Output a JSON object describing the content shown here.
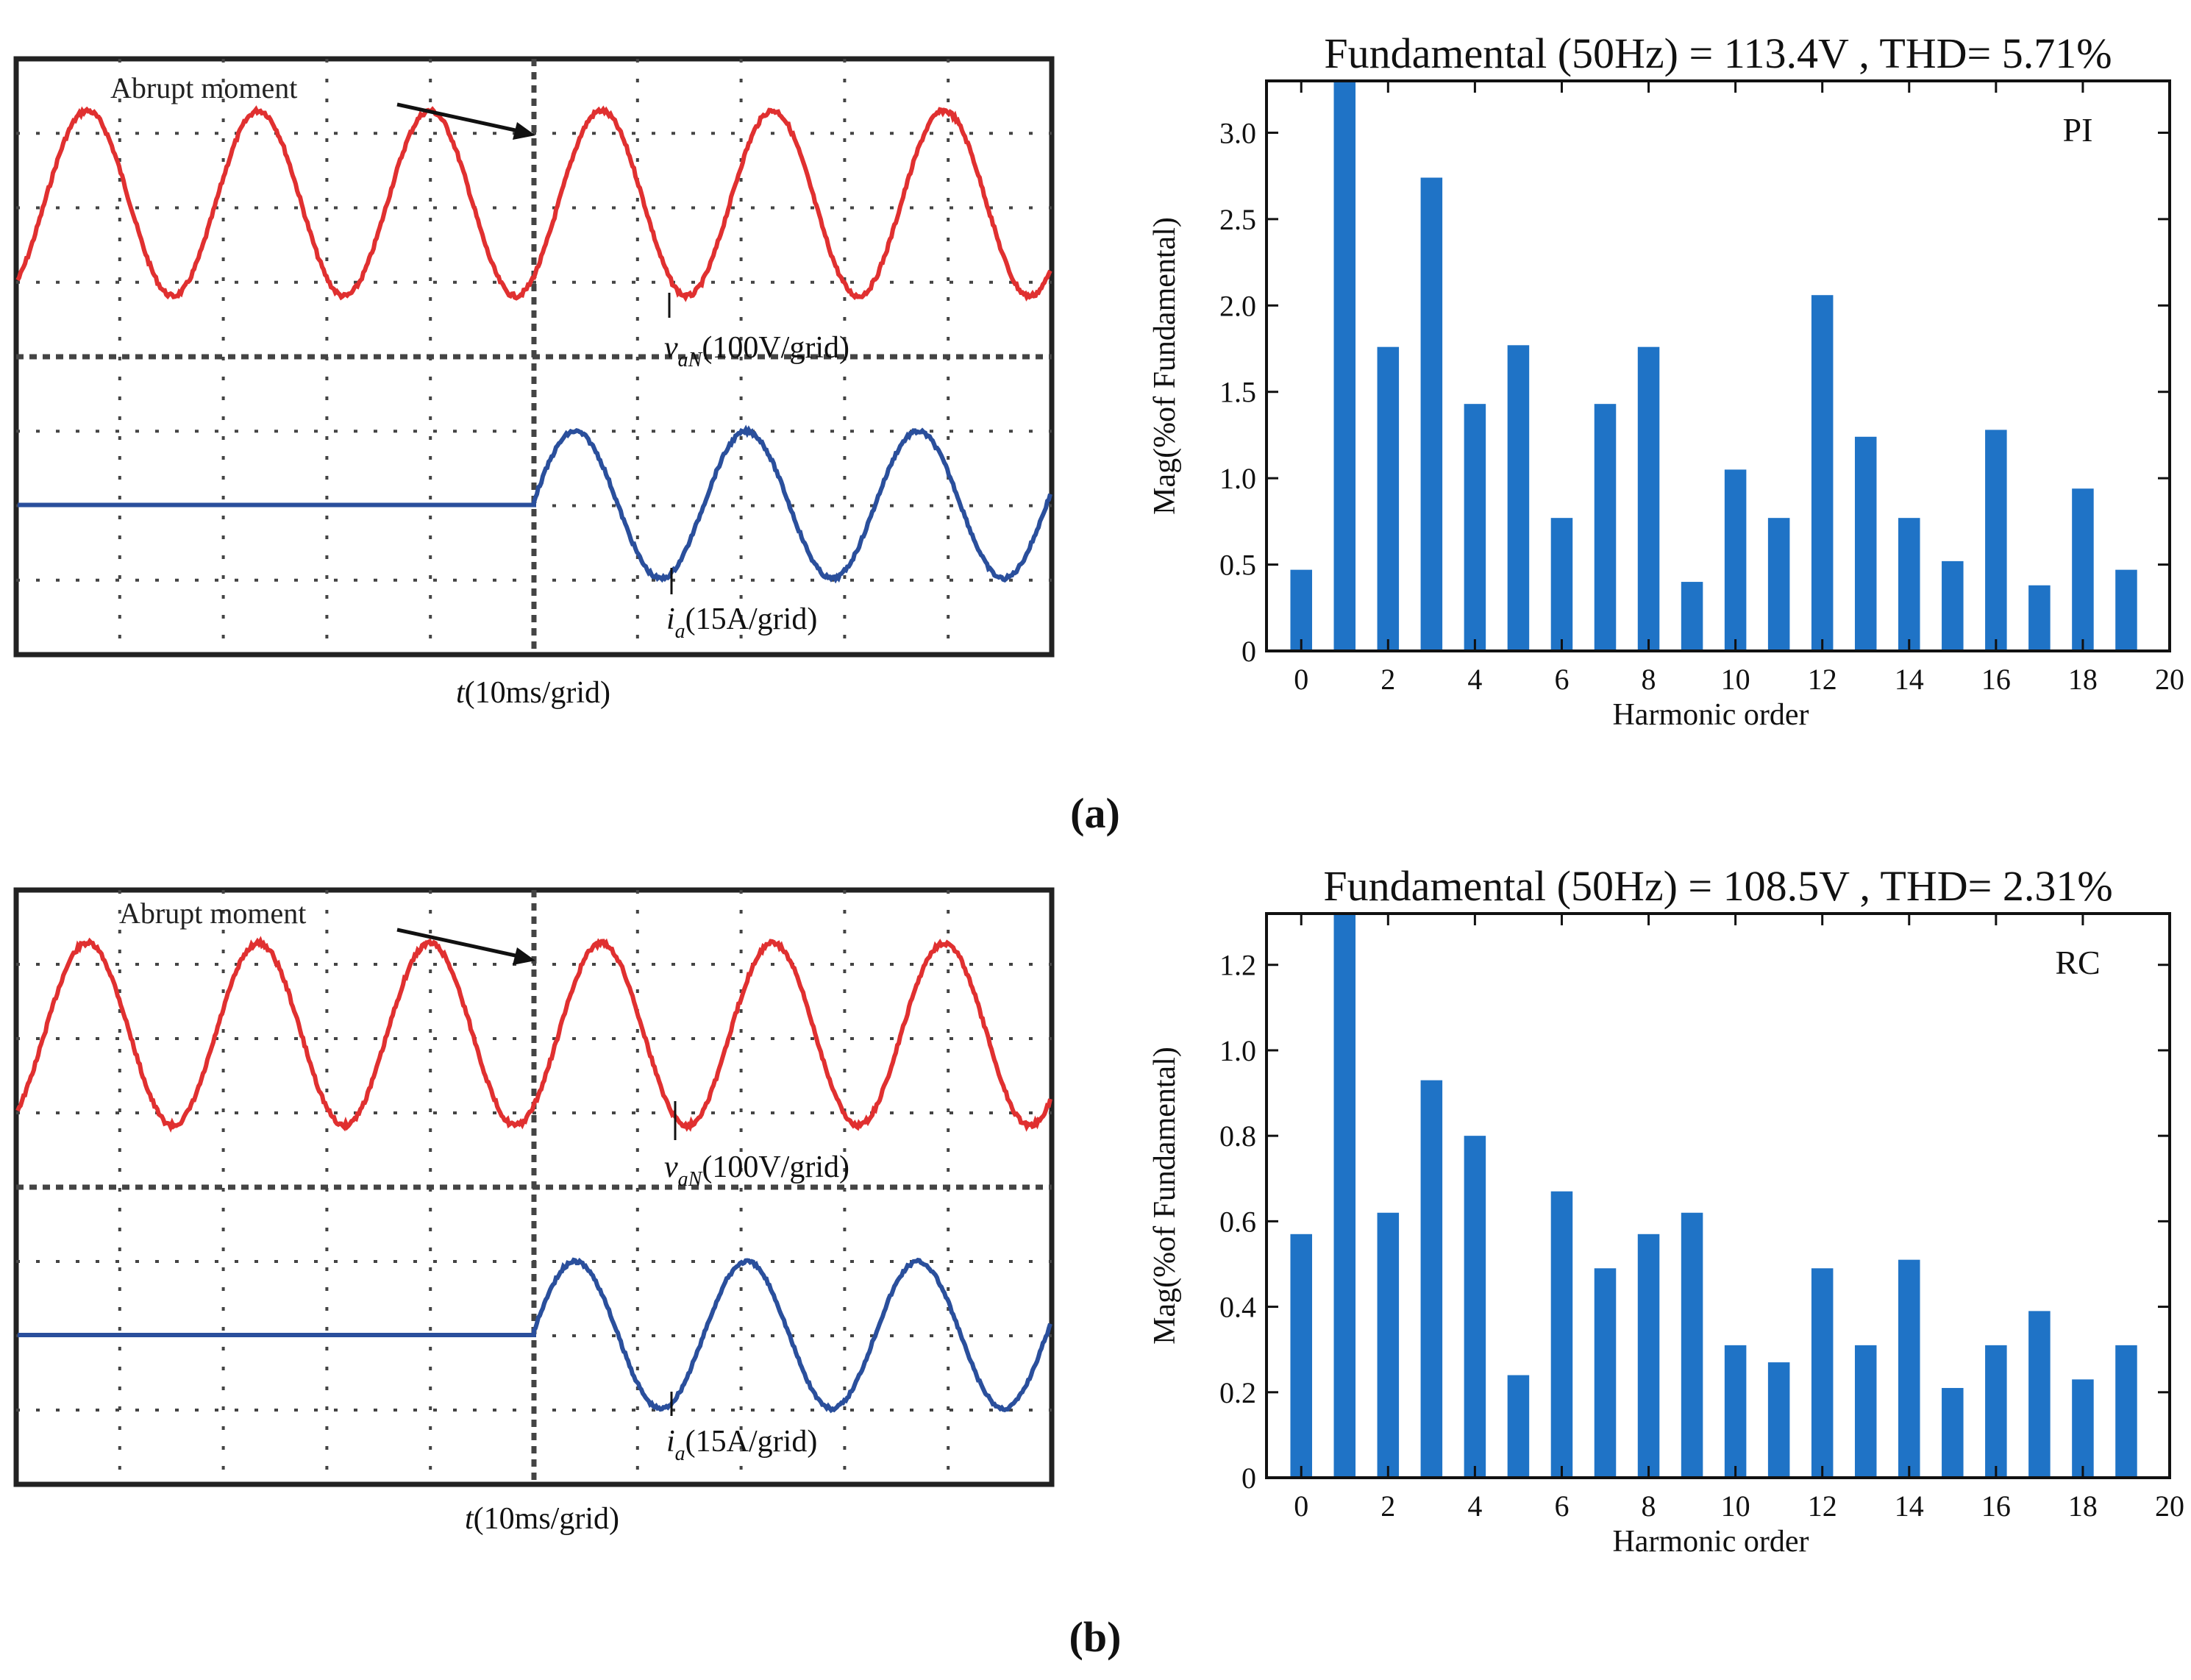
{
  "panels": [
    {
      "label": "(a)",
      "scope": {
        "annotation": "Abrupt moment",
        "voltage_label_sym": "v",
        "voltage_label_sub": "aN",
        "voltage_label_unit": "(100V/grid)",
        "current_label_sym": "i",
        "current_label_sub": "a",
        "current_label_unit": "(15A/grid)",
        "time_label_sym": "t",
        "time_label_unit": "(10ms/grid)",
        "voltage_color": "#e03030",
        "current_color": "#2a4f9c"
      }
    },
    {
      "label": "(b)",
      "scope": {
        "annotation": "Abrupt moment",
        "voltage_label_sym": "v",
        "voltage_label_sub": "aN",
        "voltage_label_unit": "(100V/grid)",
        "current_label_sym": "i",
        "current_label_sub": "a",
        "current_label_unit": "(15A/grid)",
        "time_label_sym": "t",
        "time_label_unit": "(10ms/grid)",
        "voltage_color": "#e03030",
        "current_color": "#2a4f9c"
      }
    }
  ],
  "chart_data": [
    {
      "type": "bar",
      "title": "Fundamental (50Hz) = 113.4V , THD= 5.71%",
      "legend_text": "PI",
      "xlabel": "Harmonic order",
      "ylabel": "Mag(%of Fundamental)",
      "x": [
        0,
        1,
        2,
        3,
        4,
        5,
        6,
        7,
        8,
        9,
        10,
        11,
        12,
        13,
        14,
        15,
        16,
        17,
        18,
        19
      ],
      "values": [
        0.47,
        3.3,
        1.76,
        2.74,
        1.43,
        1.77,
        0.77,
        1.43,
        1.76,
        0.4,
        1.05,
        0.77,
        2.06,
        1.24,
        0.77,
        0.52,
        1.28,
        0.38,
        0.94,
        0.47
      ],
      "xlim": [
        -0.8,
        20
      ],
      "ylim": [
        0,
        3.3
      ],
      "xticks": [
        0,
        2,
        4,
        6,
        8,
        10,
        12,
        14,
        16,
        18,
        20
      ],
      "yticks": [
        0,
        0.5,
        1.0,
        1.5,
        2.0,
        2.5,
        3.0
      ],
      "ytick_labels": [
        "0",
        "0.5",
        "1.0",
        "1.5",
        "2.0",
        "2.5",
        "3.0"
      ],
      "bar_color": "#1f73c6"
    },
    {
      "type": "bar",
      "title": "Fundamental (50Hz) = 108.5V , THD= 2.31%",
      "legend_text": "RC",
      "xlabel": "Harmonic order",
      "ylabel": "Mag(%of Fundamental)",
      "x": [
        0,
        1,
        2,
        3,
        4,
        5,
        6,
        7,
        8,
        9,
        10,
        11,
        12,
        13,
        14,
        15,
        16,
        17,
        18,
        19
      ],
      "values": [
        0.57,
        1.32,
        0.62,
        0.93,
        0.8,
        0.24,
        0.67,
        0.49,
        0.57,
        0.62,
        0.31,
        0.27,
        0.49,
        0.31,
        0.51,
        0.21,
        0.31,
        0.39,
        0.23,
        0.31
      ],
      "xlim": [
        -0.8,
        20
      ],
      "ylim": [
        0,
        1.32
      ],
      "xticks": [
        0,
        2,
        4,
        6,
        8,
        10,
        12,
        14,
        16,
        18,
        20
      ],
      "yticks": [
        0,
        0.2,
        0.4,
        0.6,
        0.8,
        1.0,
        1.2
      ],
      "ytick_labels": [
        "0",
        "0.2",
        "0.4",
        "0.6",
        "0.8",
        "1.0",
        "1.2"
      ],
      "bar_color": "#1f73c6"
    }
  ]
}
